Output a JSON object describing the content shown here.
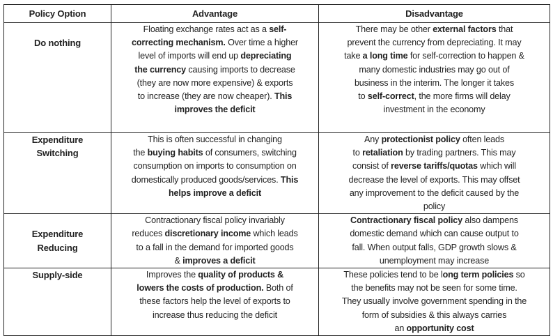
{
  "headers": [
    "Policy Option",
    "Advantage",
    "Disadvantage"
  ],
  "rows": [
    {
      "option": [
        "Do nothing"
      ],
      "advantage": [
        [
          {
            "t": "Floating exchange rates act as a "
          },
          {
            "t": "self-",
            "b": 1
          }
        ],
        [
          {
            "t": "correcting mechanism.",
            "b": 1
          },
          {
            "t": " Over time a higher"
          }
        ],
        [
          {
            "t": "level of imports will end up "
          },
          {
            "t": "depreciating",
            "b": 1
          }
        ],
        [
          {
            "t": "the currency",
            "b": 1
          },
          {
            "t": " causing imports to decrease"
          }
        ],
        [
          {
            "t": "(they are now more expensive) & exports"
          }
        ],
        [
          {
            "t": "to increase (they are now cheaper). "
          },
          {
            "t": "This",
            "b": 1
          }
        ],
        [
          {
            "t": "improves the deficit",
            "b": 1
          }
        ]
      ],
      "disadvantage": [
        [
          {
            "t": "There may be other "
          },
          {
            "t": "external factors",
            "b": 1
          },
          {
            "t": " that"
          }
        ],
        [
          {
            "t": "prevent the currency from depreciating. It may"
          }
        ],
        [
          {
            "t": "take "
          },
          {
            "t": "a long time",
            "b": 1
          },
          {
            "t": " for self-correction to happen &"
          }
        ],
        [
          {
            "t": "many domestic industries may go out of"
          }
        ],
        [
          {
            "t": "business in the interim. The longer it takes"
          }
        ],
        [
          {
            "t": "to "
          },
          {
            "t": "self-correct",
            "b": 1
          },
          {
            "t": ", the more firms will delay"
          }
        ],
        [
          {
            "t": "investment in the economy"
          }
        ]
      ]
    },
    {
      "option": [
        "Expenditure",
        "Switching"
      ],
      "advantage": [
        [
          {
            "t": "This is often successful in changing"
          }
        ],
        [
          {
            "t": "the "
          },
          {
            "t": "buying habits",
            "b": 1
          },
          {
            "t": " of consumers, switching"
          }
        ],
        [
          {
            "t": "consumption on imports to consumption on"
          }
        ],
        [
          {
            "t": "domestically produced goods/services. "
          },
          {
            "t": "This",
            "b": 1
          }
        ],
        [
          {
            "t": "helps improve a deficit",
            "b": 1
          }
        ]
      ],
      "disadvantage": [
        [
          {
            "t": "Any "
          },
          {
            "t": "protectionist policy",
            "b": 1
          },
          {
            "t": " often leads"
          }
        ],
        [
          {
            "t": "to "
          },
          {
            "t": "retaliation",
            "b": 1
          },
          {
            "t": " by trading partners. This may"
          }
        ],
        [
          {
            "t": "consist of "
          },
          {
            "t": "reverse tariffs/quotas",
            "b": 1
          },
          {
            "t": " which will"
          }
        ],
        [
          {
            "t": "decrease the level of exports. This may offset"
          }
        ],
        [
          {
            "t": "any improvement to the deficit caused by the"
          }
        ],
        [
          {
            "t": "policy"
          }
        ]
      ]
    },
    {
      "option": [
        "Expenditure",
        "Reducing"
      ],
      "advantage": [
        [
          {
            "t": "Contractionary fiscal policy invariably"
          }
        ],
        [
          {
            "t": "reduces "
          },
          {
            "t": "discretionary income",
            "b": 1
          },
          {
            "t": " which leads"
          }
        ],
        [
          {
            "t": "to a fall in the demand for imported goods"
          }
        ],
        [
          {
            "t": "& "
          },
          {
            "t": "improves a deficit",
            "b": 1
          }
        ]
      ],
      "disadvantage": [
        [
          {
            "t": "Contractionary fiscal policy",
            "b": 1
          },
          {
            "t": " also dampens"
          }
        ],
        [
          {
            "t": "domestic demand which can cause output to"
          }
        ],
        [
          {
            "t": "fall. When output falls, GDP growth slows &"
          }
        ],
        [
          {
            "t": "unemployment may increase"
          }
        ]
      ]
    },
    {
      "option": [
        "Supply-side"
      ],
      "advantage": [
        [
          {
            "t": "Improves the "
          },
          {
            "t": "quality of products &",
            "b": 1
          }
        ],
        [
          {
            "t": "lowers the costs of production.",
            "b": 1
          },
          {
            "t": " Both of"
          }
        ],
        [
          {
            "t": "these factors help the level of exports to"
          }
        ],
        [
          {
            "t": "increase thus reducing the deficit"
          }
        ]
      ],
      "disadvantage": [
        [
          {
            "t": "These policies tend to be l"
          },
          {
            "t": "ong term policies",
            "b": 1
          },
          {
            "t": " so"
          }
        ],
        [
          {
            "t": "the benefits may not be seen for some time."
          }
        ],
        [
          {
            "t": "They usually involve government spending in the"
          }
        ],
        [
          {
            "t": "form of subsidies & this always carries"
          }
        ],
        [
          {
            "t": "an "
          },
          {
            "t": "opportunity cost",
            "b": 1
          }
        ]
      ]
    }
  ]
}
